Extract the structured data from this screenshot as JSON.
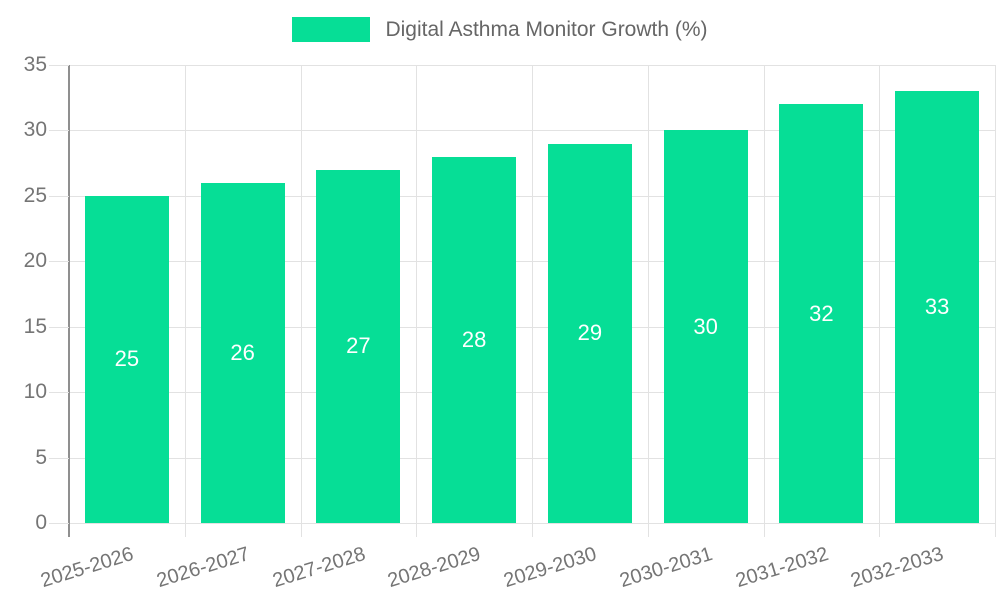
{
  "chart_data": {
    "type": "bar",
    "title": "Digital Asthma Monitor Growth (%)",
    "legend_label": "Digital Asthma Monitor Growth (%)",
    "legend_position": "top-center",
    "categories": [
      "2025-2026",
      "2026-2027",
      "2027-2028",
      "2028-2029",
      "2029-2030",
      "2030-2031",
      "2031-2032",
      "2032-2033"
    ],
    "values": [
      25,
      26,
      27,
      28,
      29,
      30,
      32,
      33
    ],
    "bar_value_labels": [
      "25",
      "26",
      "27",
      "28",
      "29",
      "30",
      "32",
      "33"
    ],
    "xlabel": "",
    "ylabel": "",
    "ylim": [
      0,
      35
    ],
    "ytick_step": 5,
    "ytick_labels": [
      "0",
      "5",
      "10",
      "15",
      "20",
      "25",
      "30",
      "35"
    ],
    "grid": true,
    "colors": {
      "bar": "#06DE96",
      "bar_value_text": "#FFFFFF",
      "grid_line": "#E2E2E2",
      "axis_line": "#8F8F8F",
      "tick_text": "#757575",
      "legend_text": "#666666",
      "background": "#FFFFFF"
    }
  }
}
